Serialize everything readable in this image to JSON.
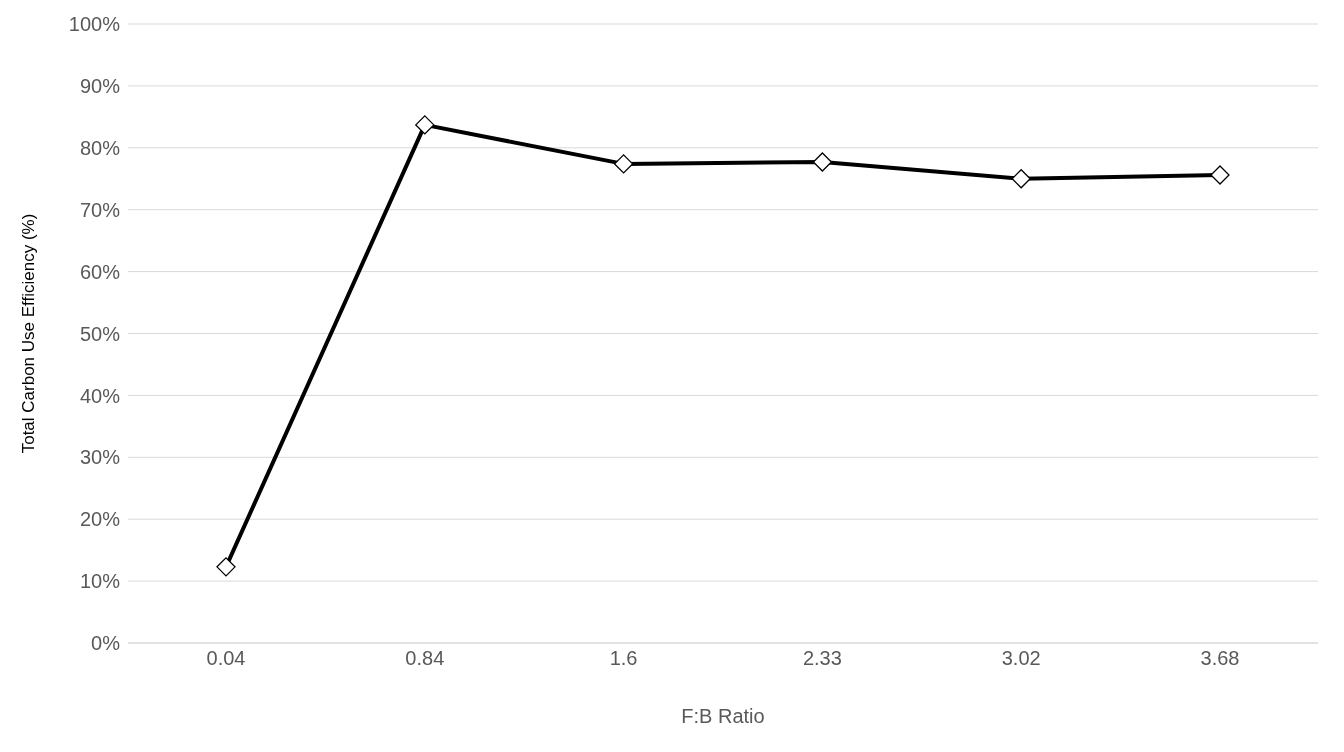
{
  "chart_data": {
    "type": "line",
    "xlabel": "F:B Ratio",
    "ylabel": "Total Carbon Use Efficiency (%)",
    "categories": [
      "0.04",
      "0.84",
      "1.6",
      "2.33",
      "3.02",
      "3.68"
    ],
    "series": [
      {
        "color": "#000000",
        "values": [
          12.3,
          83.7,
          77.4,
          77.7,
          75.0,
          75.6
        ]
      }
    ],
    "ylim": [
      0,
      100
    ],
    "yticks": [
      {
        "value": 0,
        "label": "0%"
      },
      {
        "value": 10,
        "label": "10%"
      },
      {
        "value": 20,
        "label": "20%"
      },
      {
        "value": 30,
        "label": "30%"
      },
      {
        "value": 40,
        "label": "40%"
      },
      {
        "value": 50,
        "label": "50%"
      },
      {
        "value": 60,
        "label": "60%"
      },
      {
        "value": 70,
        "label": "70%"
      },
      {
        "value": 80,
        "label": "80%"
      },
      {
        "value": 90,
        "label": "90%"
      },
      {
        "value": 100,
        "label": "100%"
      }
    ],
    "grid": "y",
    "marker": "diamond",
    "line_style": "solid"
  }
}
